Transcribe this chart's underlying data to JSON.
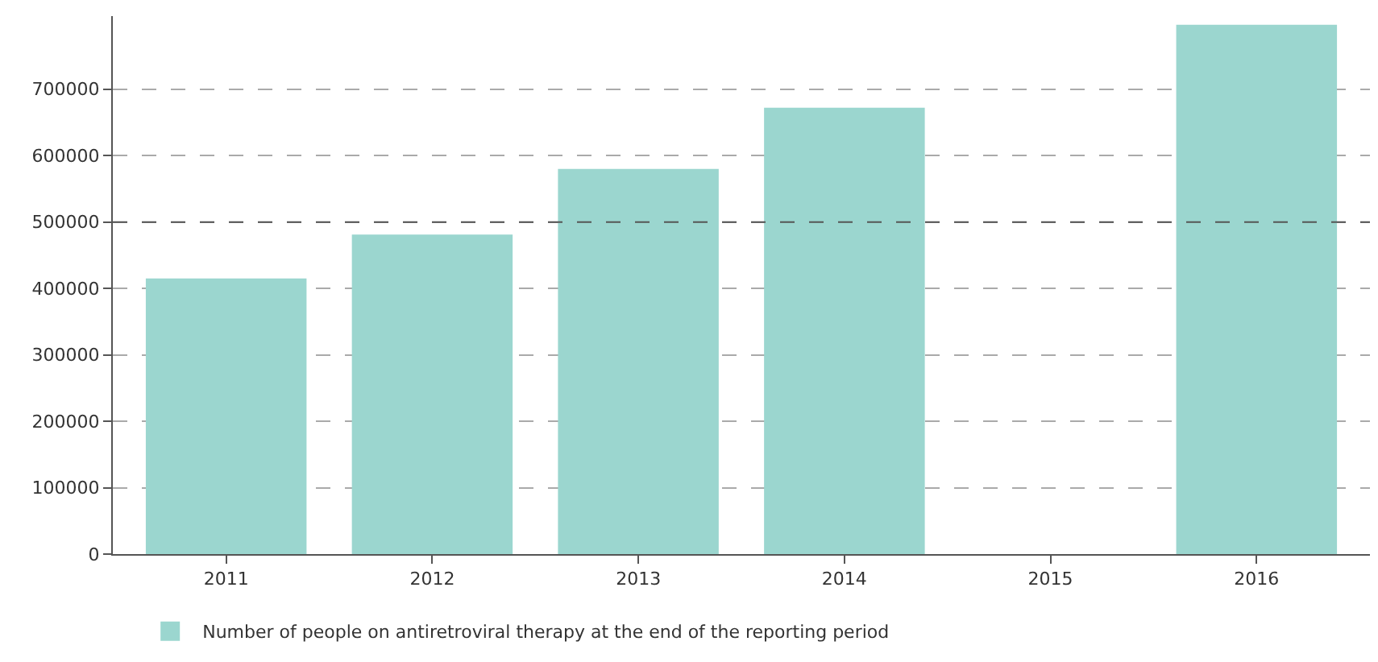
{
  "chart_data": {
    "type": "bar",
    "categories": [
      "2011",
      "2012",
      "2013",
      "2014",
      "2015",
      "2016"
    ],
    "series": [
      {
        "name": "Number of people on antiretroviral therapy at the end of the reporting period",
        "color": "#9bd6cf",
        "values": [
          415000,
          481000,
          580000,
          672000,
          null,
          797000
        ]
      }
    ],
    "ylim": [
      0,
      810000
    ],
    "yticks": [
      0,
      100000,
      200000,
      300000,
      400000,
      500000,
      600000,
      700000
    ],
    "grid": "y",
    "legend": "bottom",
    "ref_lines": [
      {
        "axis": "y",
        "value": 500000,
        "color": "#555555",
        "line_style": "dashed"
      }
    ]
  }
}
